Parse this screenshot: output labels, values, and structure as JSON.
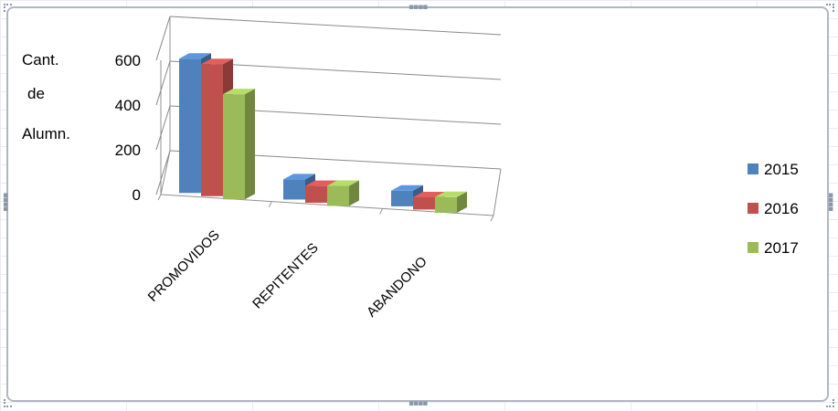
{
  "chart_data": {
    "type": "bar",
    "categories": [
      "PROMOVIDOS",
      "REPITENTES",
      "ABANDONO"
    ],
    "series": [
      {
        "name": "2015",
        "values": [
          600,
          90,
          70
        ]
      },
      {
        "name": "2016",
        "values": [
          590,
          75,
          55
        ]
      },
      {
        "name": "2017",
        "values": [
          470,
          90,
          70
        ]
      }
    ],
    "title": "",
    "ylabel": [
      "Cant.",
      "de",
      "Alumn."
    ],
    "ylim": [
      0,
      600
    ],
    "yticks": [
      0,
      200,
      400,
      600
    ],
    "grid": true,
    "style": "3d-clustered-column",
    "legend_position": "right",
    "colors": {
      "2015": "#4f81bd",
      "2016": "#c0504d",
      "2017": "#9bbb59"
    }
  }
}
